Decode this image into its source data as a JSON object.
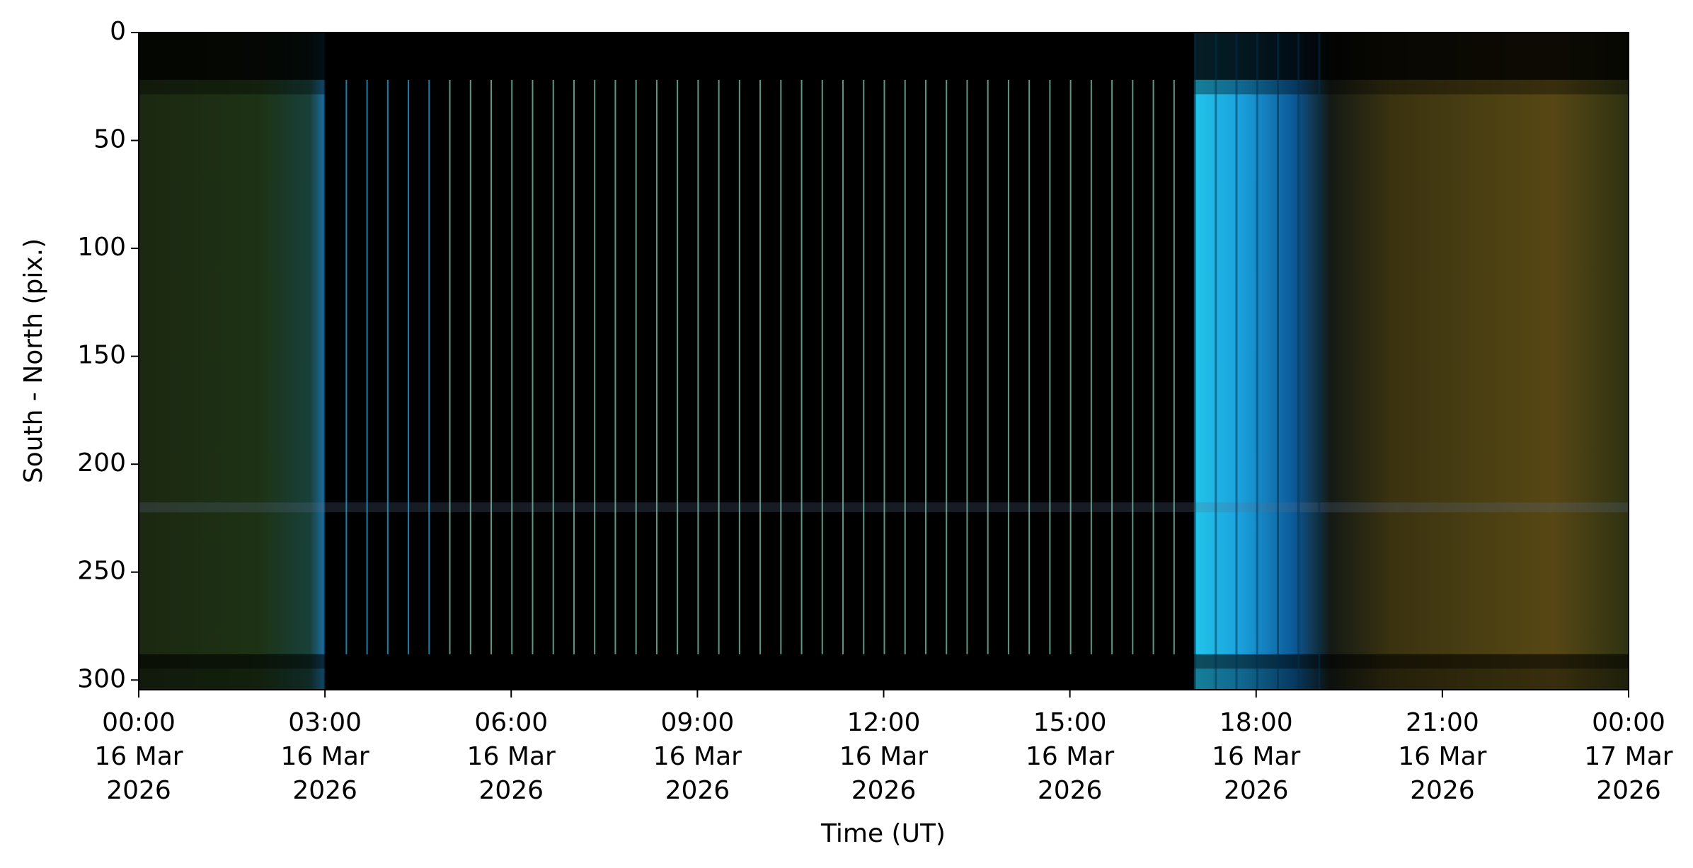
{
  "chart_data": {
    "type": "image",
    "xlabel": "Time (UT)",
    "ylabel": "South - North (pix.)",
    "xlim": [
      "2026-03-16T00:00",
      "2026-03-17T00:00"
    ],
    "xticks": [
      {
        "value": "2026-03-16T00:00",
        "label": "00:00\n16 Mar\n2026"
      },
      {
        "value": "2026-03-16T03:00",
        "label": "03:00\n16 Mar\n2026"
      },
      {
        "value": "2026-03-16T06:00",
        "label": "06:00\n16 Mar\n2026"
      },
      {
        "value": "2026-03-16T09:00",
        "label": "09:00\n16 Mar\n2026"
      },
      {
        "value": "2026-03-16T12:00",
        "label": "12:00\n16 Mar\n2026"
      },
      {
        "value": "2026-03-16T15:00",
        "label": "15:00\n16 Mar\n2026"
      },
      {
        "value": "2026-03-16T18:00",
        "label": "18:00\n16 Mar\n2026"
      },
      {
        "value": "2026-03-16T21:00",
        "label": "21:00\n16 Mar\n2026"
      },
      {
        "value": "2026-03-17T00:00",
        "label": "00:00\n17 Mar\n2026"
      }
    ],
    "ylim": [
      304.5,
      0
    ],
    "yticks": [
      0,
      50,
      100,
      150,
      200,
      250,
      300
    ]
  }
}
